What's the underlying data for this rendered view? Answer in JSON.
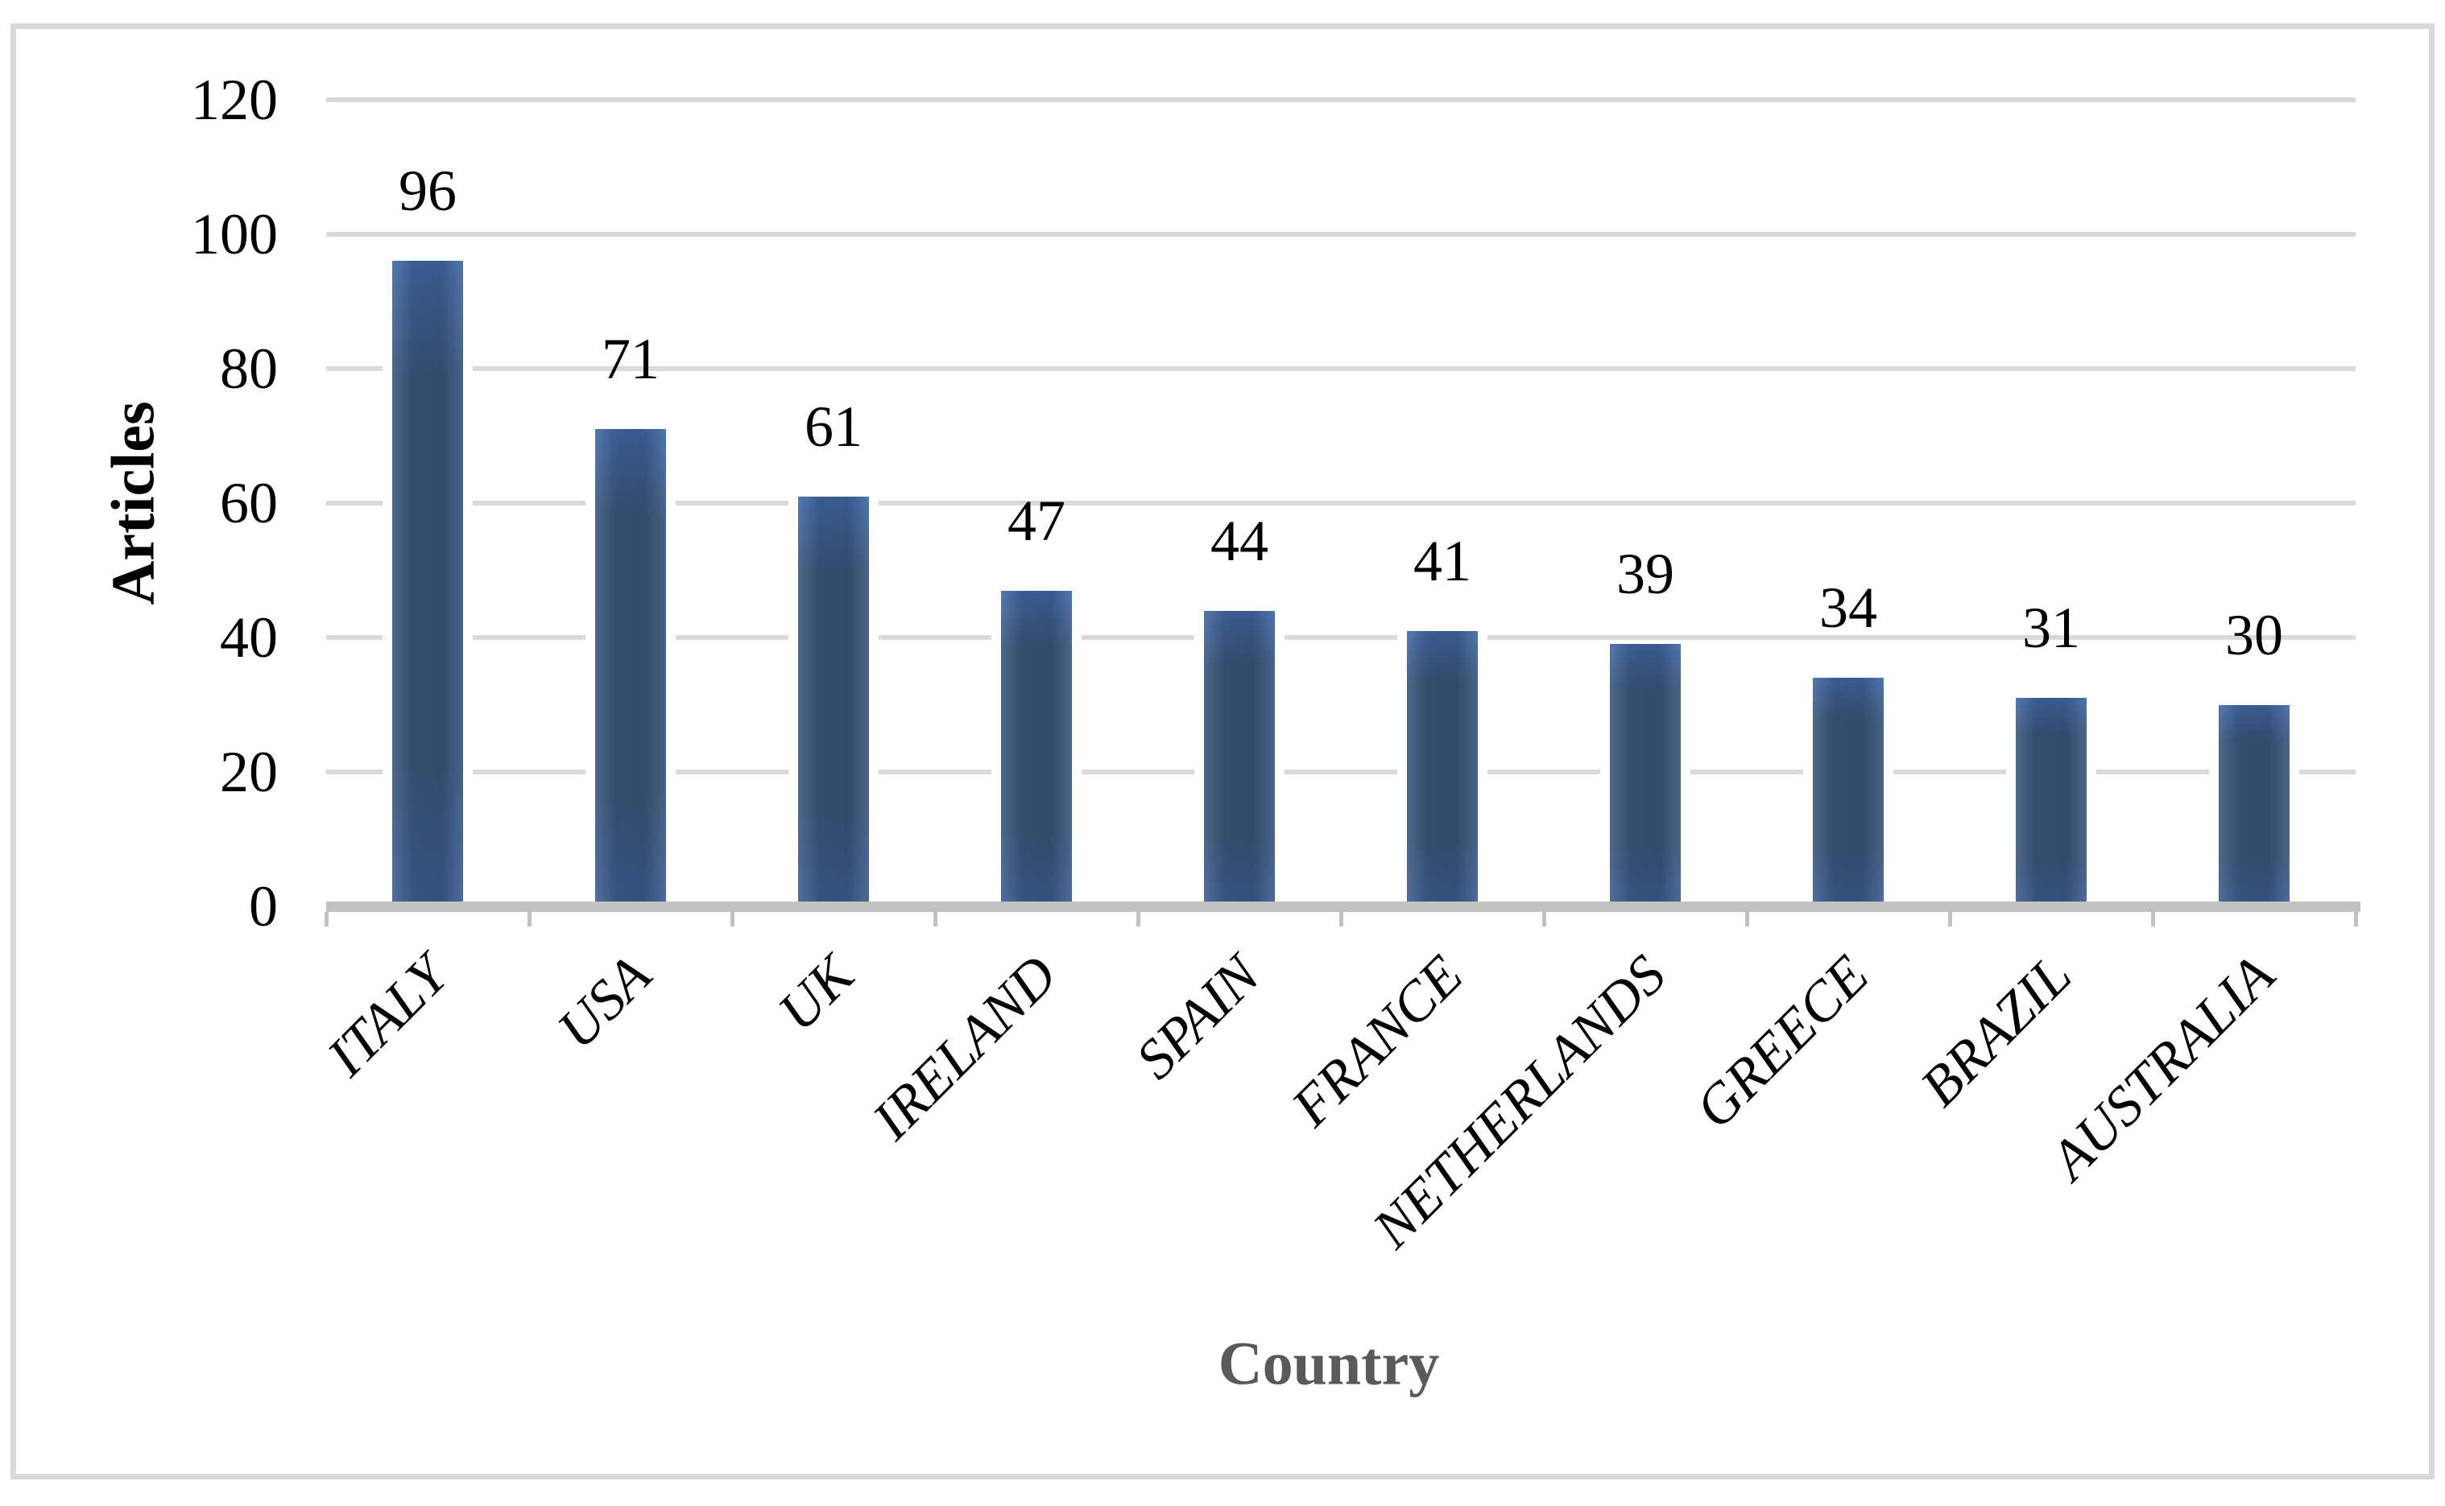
{
  "chart_data": {
    "type": "bar",
    "title": "",
    "categories": [
      "ITALY",
      "USA",
      "UK",
      "IRELAND",
      "SPAIN",
      "FRANCE",
      "NETHERLANDS",
      "GREECE",
      "BRAZIL",
      "AUSTRALIA"
    ],
    "values": [
      96,
      71,
      61,
      47,
      44,
      41,
      39,
      34,
      31,
      30
    ],
    "xlabel": "Country",
    "ylabel": "Articles",
    "ylim": [
      0,
      120
    ],
    "ytick_step": 20,
    "ytick_labels": [
      "0",
      "20",
      "40",
      "60",
      "80",
      "100",
      "120"
    ],
    "data_labels_shown": true,
    "grid": "horizontal",
    "legend": "none",
    "colors": {
      "bar_top": "#4269a6",
      "bar_mid": "#3a567c",
      "bar_lower": "#3d5f93",
      "gridline": "#d9d9d9",
      "axis_line": "#c1c1c1",
      "tick_label": "#000000",
      "value_label": "#000000",
      "x_title": "#595959",
      "y_title": "#000000",
      "border": "#d9d9d9",
      "background": "#ffffff"
    }
  }
}
